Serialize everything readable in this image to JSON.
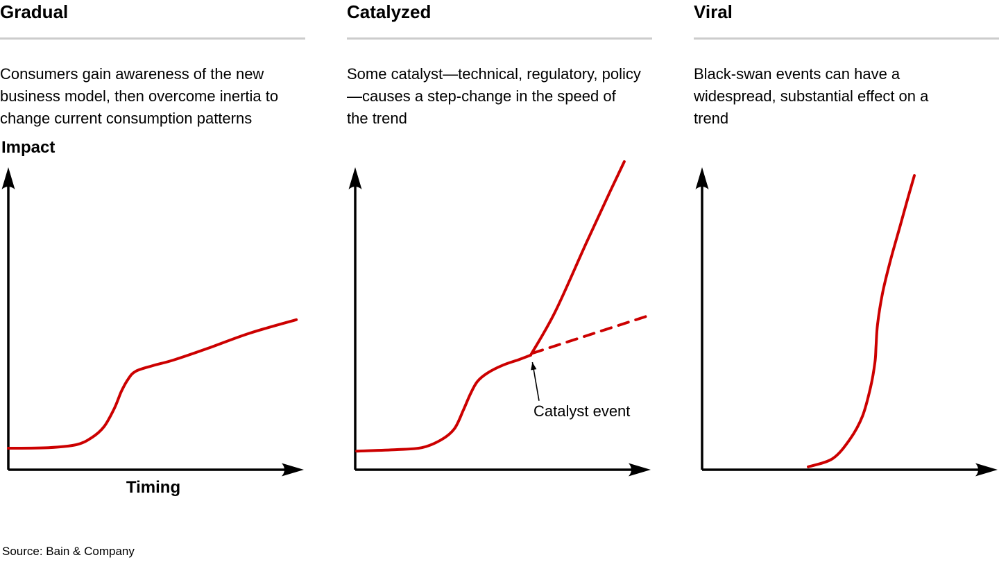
{
  "source": "Source: Bain & Company",
  "colors": {
    "trend_red": "#CC0000",
    "divider_gray": "#CCCCCC",
    "axis_black": "#000000"
  },
  "axes": {
    "y_label": "Impact",
    "x_label": "Timing"
  },
  "panels": [
    {
      "title": "Gradual",
      "description": "Consumers gain awareness of the new business model, then overcome inertia to change current consumption patterns"
    },
    {
      "title": "Catalyzed",
      "description": "Some catalyst—technical, regulatory, policy—causes a step-change in the speed of the trend",
      "annotation": "Catalyst event"
    },
    {
      "title": "Viral",
      "description": "Black-swan events can have a widespread, substantial effect on a trend"
    }
  ],
  "chart_data": [
    {
      "type": "line",
      "title": "Gradual",
      "xlabel": "Timing",
      "ylabel": "Impact",
      "grid": false,
      "axis_style": "conceptual arrows, no tick labels, values normalized 0-1",
      "series": [
        {
          "name": "gradual-trend",
          "style": "solid",
          "color": "#CC0000",
          "x": [
            0.0,
            0.139,
            0.234,
            0.287,
            0.33,
            0.366,
            0.39,
            0.414,
            0.44,
            0.498,
            0.569,
            0.689,
            0.833,
            0.993
          ],
          "y": [
            0.074,
            0.076,
            0.086,
            0.11,
            0.148,
            0.212,
            0.27,
            0.313,
            0.339,
            0.358,
            0.377,
            0.418,
            0.47,
            0.516
          ]
        }
      ]
    },
    {
      "type": "line",
      "title": "Catalyzed",
      "xlabel": "",
      "ylabel": "",
      "grid": false,
      "axis_style": "conceptual arrows, no tick labels, values normalized 0-1",
      "series": [
        {
          "name": "pre-catalyst-trend",
          "style": "solid",
          "color": "#CC0000",
          "x": [
            0.005,
            0.139,
            0.23,
            0.297,
            0.342,
            0.373,
            0.397,
            0.421,
            0.455,
            0.51,
            0.565,
            0.605
          ],
          "y": [
            0.064,
            0.069,
            0.076,
            0.103,
            0.141,
            0.205,
            0.26,
            0.303,
            0.332,
            0.36,
            0.379,
            0.394
          ]
        },
        {
          "name": "catalyzed-acceleration",
          "style": "solid",
          "color": "#CC0000",
          "x": [
            0.605,
            0.689,
            0.797,
            0.88,
            0.928
          ],
          "y": [
            0.394,
            0.542,
            0.78,
            0.959,
            1.06
          ]
        },
        {
          "name": "original-trajectory-dashed",
          "style": "dashed",
          "color": "#CC0000",
          "x": [
            0.612,
            1.012
          ],
          "y": [
            0.401,
            0.53
          ]
        }
      ],
      "annotation": {
        "text": "Catalyst event",
        "arrow_from": [
          0.634,
          0.237
        ],
        "arrow_to": [
          0.611,
          0.37
        ]
      }
    },
    {
      "type": "line",
      "title": "Viral",
      "xlabel": "",
      "ylabel": "",
      "grid": false,
      "axis_style": "conceptual arrows, no tick labels, values normalized 0-1",
      "series": [
        {
          "name": "viral-trend",
          "style": "solid",
          "color": "#CC0000",
          "x": [
            0.366,
            0.45,
            0.51,
            0.553,
            0.581,
            0.596,
            0.6,
            0.605,
            0.622,
            0.648,
            0.682,
            0.708,
            0.732
          ],
          "y": [
            0.01,
            0.038,
            0.105,
            0.184,
            0.284,
            0.368,
            0.427,
            0.499,
            0.606,
            0.714,
            0.835,
            0.928,
            1.012
          ]
        }
      ]
    }
  ]
}
